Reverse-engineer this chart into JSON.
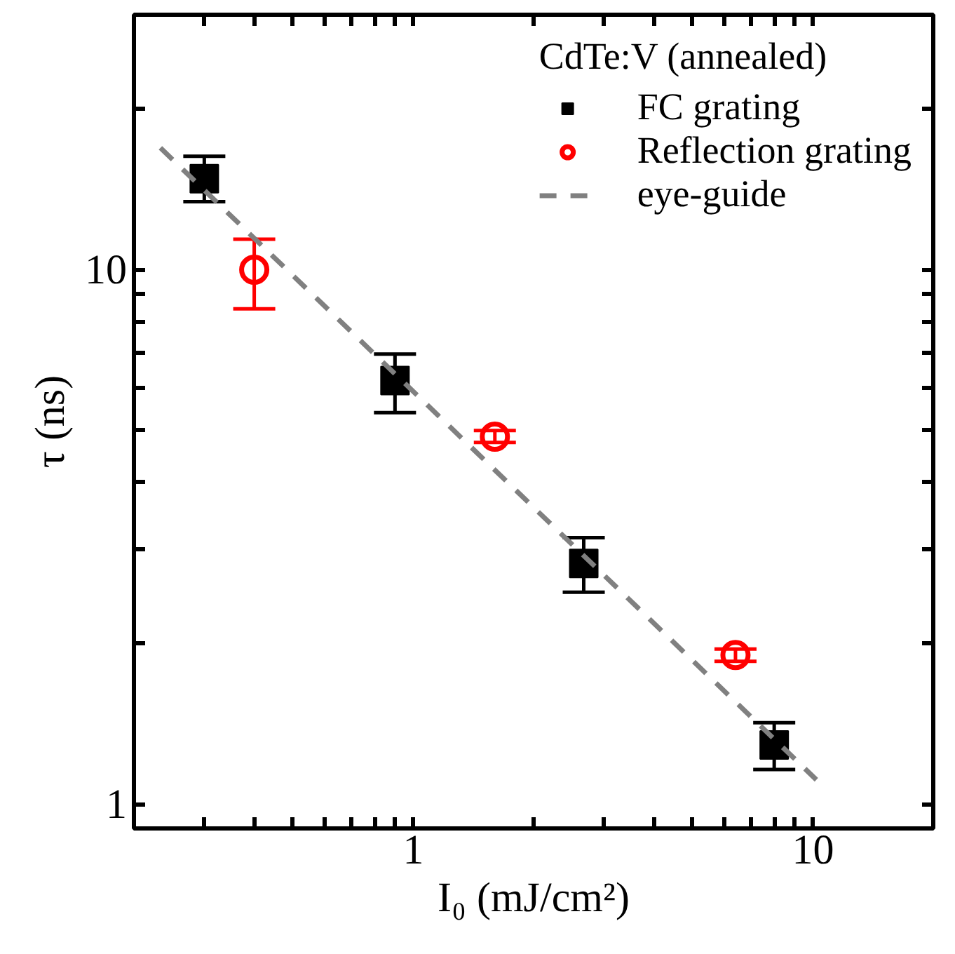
{
  "chart_data": {
    "type": "scatter",
    "xlabel": "I₀ (mJ/cm²)",
    "ylabel": "τ (ns)",
    "legend_title": "CdTe:V (annealed)",
    "log": "xy",
    "grid": false,
    "legend": "top right",
    "xlim": [
      0.2,
      20
    ],
    "ylim": [
      0.9,
      30
    ],
    "xticks": [
      {
        "value": 0.2,
        "label": null
      },
      {
        "value": 0.3,
        "label": null
      },
      {
        "value": 0.4,
        "label": null
      },
      {
        "value": 0.5,
        "label": null
      },
      {
        "value": 0.6,
        "label": null
      },
      {
        "value": 0.7,
        "label": null
      },
      {
        "value": 0.8,
        "label": null
      },
      {
        "value": 0.9,
        "label": null
      },
      1,
      {
        "value": 2,
        "label": null
      },
      {
        "value": 3,
        "label": null
      },
      {
        "value": 4,
        "label": null
      },
      {
        "value": 5,
        "label": null
      },
      {
        "value": 6,
        "label": null
      },
      {
        "value": 7,
        "label": null
      },
      {
        "value": 8,
        "label": null
      },
      {
        "value": 9,
        "label": null
      },
      10
    ],
    "yticks": [
      1,
      {
        "value": 2,
        "label": null
      },
      {
        "value": 3,
        "label": null
      },
      {
        "value": 4,
        "label": null
      },
      {
        "value": 5,
        "label": null
      },
      {
        "value": 6,
        "label": null
      },
      {
        "value": 7,
        "label": null
      },
      {
        "value": 8,
        "label": null
      },
      {
        "value": 9,
        "label": null
      },
      10,
      {
        "value": 20,
        "label": null
      }
    ],
    "series": [
      {
        "name": "FC grating",
        "marker": "square",
        "color": "#000000",
        "x": [
          0.3,
          0.9,
          2.67,
          8.0
        ],
        "values": [
          14.8,
          6.2,
          2.82,
          1.29
        ],
        "errors": [
          [
            13.4,
            16.3
          ],
          [
            5.4,
            6.95
          ],
          [
            2.49,
            3.15
          ],
          [
            1.16,
            1.42
          ]
        ]
      },
      {
        "name": "Reflection grating",
        "marker": "circle",
        "color": "#ff0000",
        "x": [
          0.4,
          1.6,
          6.4
        ],
        "values": [
          10,
          4.87,
          1.9
        ],
        "errors": [
          [
            8.45,
            11.4
          ],
          [
            4.75,
            5.0
          ],
          [
            1.85,
            1.95
          ]
        ]
      },
      {
        "name": "eye-guide",
        "type": "line",
        "line_style": "dashed",
        "color": "#808080",
        "x": [
          0.233,
          10.2
        ],
        "values": [
          16.9,
          1.11
        ]
      }
    ]
  }
}
